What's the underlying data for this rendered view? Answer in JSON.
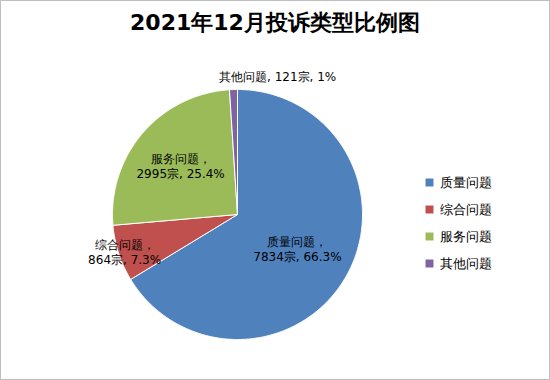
{
  "chart_data": {
    "type": "pie",
    "title": "2021年12月投诉类型比例图",
    "categories": [
      "质量问题",
      "综合问题",
      "服务问题",
      "其他问题"
    ],
    "values": [
      7834,
      864,
      2995,
      121
    ],
    "value_labels": [
      "质量问题，\n7834宗, 66.3%",
      "综合问题，\n864宗, 7.3%",
      "服务问题，\n2995宗, 25.4%",
      "其他问题, 121宗, 1%"
    ],
    "colors": [
      "#4f81bd",
      "#c0504d",
      "#9bbb59",
      "#8064a2"
    ],
    "data_labels": true,
    "legend": "right"
  }
}
